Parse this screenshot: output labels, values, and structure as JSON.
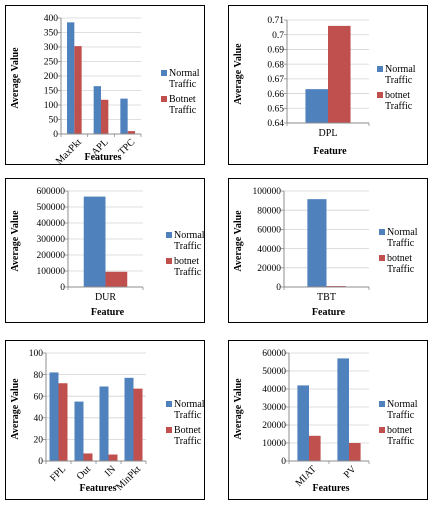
{
  "chart_data": [
    {
      "type": "bar",
      "categories": [
        "MaxPkt",
        "APL",
        "TPC"
      ],
      "series": [
        {
          "name": "Normal Traffic",
          "values": [
            385,
            165,
            122
          ]
        },
        {
          "name": "Botnet Traffic",
          "values": [
            303,
            118,
            10
          ]
        }
      ],
      "ylim": [
        0,
        400
      ],
      "yticks": [
        0,
        50,
        100,
        150,
        200,
        250,
        300,
        350,
        400
      ],
      "xlabel": "Features",
      "ylabel": "Average Value",
      "rotate_categories": true,
      "legend_placement": "right"
    },
    {
      "type": "bar",
      "categories": [
        "DPL"
      ],
      "series": [
        {
          "name": "Normal Traffic",
          "values": [
            0.663
          ]
        },
        {
          "name": "botnet Traffic",
          "values": [
            0.706
          ]
        }
      ],
      "ylim": [
        0.64,
        0.71
      ],
      "yticks": [
        0.64,
        0.65,
        0.66,
        0.67,
        0.68,
        0.69,
        0.7,
        0.71
      ],
      "xlabel": "Feature",
      "ylabel": "Average Value",
      "rotate_categories": false,
      "legend_placement": "right"
    },
    {
      "type": "bar",
      "categories": [
        "DUR"
      ],
      "series": [
        {
          "name": "Normal Traffic",
          "values": [
            565000
          ]
        },
        {
          "name": "botnet Traffic",
          "values": [
            95000
          ]
        }
      ],
      "ylim": [
        0,
        600000
      ],
      "yticks": [
        0,
        100000,
        200000,
        300000,
        400000,
        500000,
        600000
      ],
      "xlabel": "Feature",
      "ylabel": "Average Value",
      "rotate_categories": false,
      "legend_placement": "right"
    },
    {
      "type": "bar",
      "categories": [
        "TBT"
      ],
      "series": [
        {
          "name": "Normal Traffic",
          "values": [
            91500
          ]
        },
        {
          "name": "botnet Traffic",
          "values": [
            1000
          ]
        }
      ],
      "ylim": [
        0,
        100000
      ],
      "yticks": [
        0,
        20000,
        40000,
        60000,
        80000,
        100000
      ],
      "xlabel": "Feature",
      "ylabel": "Average Value",
      "rotate_categories": false,
      "legend_placement": "right"
    },
    {
      "type": "bar",
      "categories": [
        "FPL",
        "Out",
        "IN",
        "MinPkt"
      ],
      "series": [
        {
          "name": "Normal Traffic",
          "values": [
            82,
            55,
            69,
            77
          ]
        },
        {
          "name": "Botnet Traffic",
          "values": [
            72,
            7,
            6,
            67
          ]
        }
      ],
      "ylim": [
        0,
        100
      ],
      "yticks": [
        0,
        20,
        40,
        60,
        80,
        100
      ],
      "xlabel": "Features",
      "ylabel": "Average Value",
      "rotate_categories": true,
      "legend_placement": "right"
    },
    {
      "type": "bar",
      "categories": [
        "MIAT",
        "PV"
      ],
      "series": [
        {
          "name": "Normal Traffic",
          "values": [
            42000,
            57000
          ]
        },
        {
          "name": "botnet Traffic",
          "values": [
            14000,
            10000
          ]
        }
      ],
      "ylim": [
        0,
        60000
      ],
      "yticks": [
        0,
        10000,
        20000,
        30000,
        40000,
        50000,
        60000
      ],
      "xlabel": "Features",
      "ylabel": "Average Value",
      "rotate_categories": true,
      "legend_placement": "right"
    }
  ],
  "colors": {
    "normal": "#4f81bd",
    "botnet": "#c0504d",
    "grid": "#d4d4d4",
    "axis": "#8c8c8c"
  }
}
